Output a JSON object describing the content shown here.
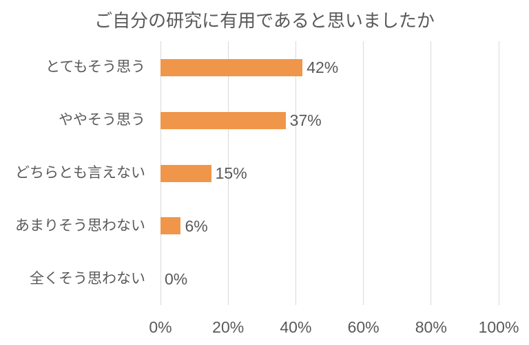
{
  "chart_data": {
    "type": "bar",
    "orientation": "horizontal",
    "title": "ご自分の研究に有用であると思いましたか",
    "categories": [
      "とてもそう思う",
      "ややそう思う",
      "どちらとも言えない",
      "あまりそう思わない",
      "全くそう思わない"
    ],
    "values": [
      42,
      37,
      15,
      6,
      0
    ],
    "data_labels": [
      "42%",
      "37%",
      "15%",
      "6%",
      "0%"
    ],
    "x_tick_labels": [
      "0%",
      "20%",
      "40%",
      "60%",
      "80%",
      "100%"
    ],
    "xlim": [
      0,
      100
    ],
    "grid": "vertical",
    "legend": "none",
    "colors": {
      "bar": "#F0964A",
      "gridline": "#D9D9D9",
      "text": "#595959",
      "background": "#FFFFFF"
    }
  }
}
